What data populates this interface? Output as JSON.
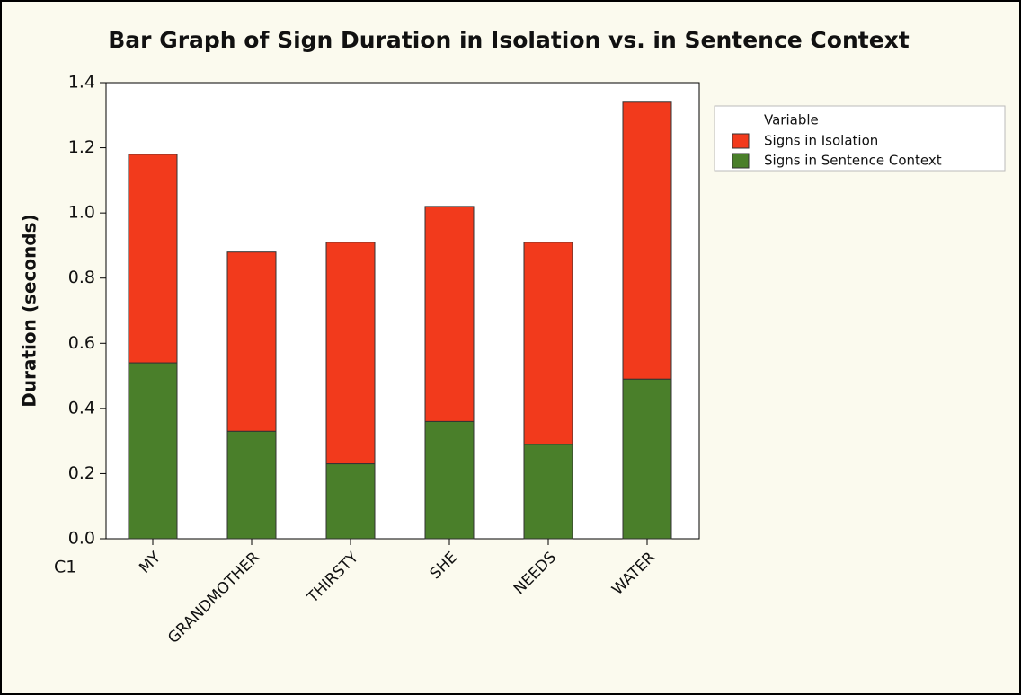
{
  "chart_data": {
    "type": "stacked-bar",
    "title": "Bar Graph of Sign Duration in Isolation vs. in Sentence Context",
    "y_label": "Duration (seconds)",
    "x_label": "C1",
    "legend_title": "Variable",
    "categories": [
      "MY",
      "GRANDMOTHER",
      "THIRSTY",
      "SHE",
      "NEEDS",
      "WATER"
    ],
    "series": [
      {
        "name": "Signs in Isolation",
        "color": "#f23a1c",
        "values": [
          0.64,
          0.55,
          0.68,
          0.66,
          0.62,
          0.85
        ]
      },
      {
        "name": "Signs in Sentence Context",
        "color": "#4a7f2a",
        "values": [
          0.54,
          0.33,
          0.23,
          0.36,
          0.29,
          0.49
        ]
      }
    ],
    "ylim": [
      0,
      1.4
    ],
    "yticks": [
      {
        "value": 0,
        "label": "0.0"
      },
      0.2,
      0.4,
      0.6,
      0.8,
      {
        "value": 1,
        "label": "1.0"
      },
      1.2,
      1.4
    ],
    "legend": "top-right"
  }
}
